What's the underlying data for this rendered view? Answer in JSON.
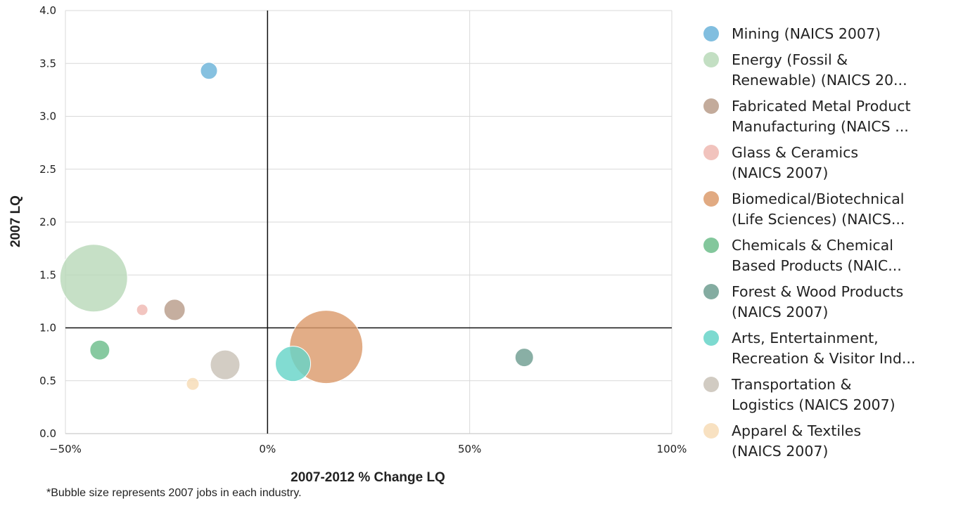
{
  "chart_data": {
    "type": "scatter",
    "xlabel": "2007-2012 % Change LQ",
    "ylabel": "2007 LQ",
    "xlim": [
      -50,
      100
    ],
    "ylim": [
      0,
      4
    ],
    "x_ticks": [
      {
        "value": -50,
        "label": "−50%"
      },
      {
        "value": 0,
        "label": "0%"
      },
      {
        "value": 50,
        "label": "50%"
      },
      {
        "value": 100,
        "label": "100%"
      }
    ],
    "y_ticks": [
      {
        "value": 0,
        "label": "0.0"
      },
      {
        "value": 0.5,
        "label": "0.5"
      },
      {
        "value": 1,
        "label": "1.0"
      },
      {
        "value": 1.5,
        "label": "1.5"
      },
      {
        "value": 2,
        "label": "2.0"
      },
      {
        "value": 2.5,
        "label": "2.5"
      },
      {
        "value": 3,
        "label": "3.0"
      },
      {
        "value": 3.5,
        "label": "3.5"
      },
      {
        "value": 4,
        "label": "4.0"
      }
    ],
    "reference_lines": {
      "x": 0,
      "y": 1.0
    },
    "grid": true,
    "legend_position": "right",
    "series": [
      {
        "name_lines": [
          "Mining (NAICS 2007)"
        ],
        "x": -14.5,
        "y": 3.43,
        "size": 12,
        "color": "#6bb3d9"
      },
      {
        "name_lines": [
          "Energy (Fossil &",
          "Renewable) (NAICS 20..."
        ],
        "x": -43,
        "y": 1.47,
        "size": 48,
        "color": "#b9d9b9"
      },
      {
        "name_lines": [
          "Fabricated Metal Product",
          "Manufacturing (NAICS ..."
        ],
        "x": -23,
        "y": 1.17,
        "size": 15,
        "color": "#b89c8a"
      },
      {
        "name_lines": [
          "Glass & Ceramics",
          "(NAICS 2007)"
        ],
        "x": -31,
        "y": 1.17,
        "size": 8,
        "color": "#efb8b2"
      },
      {
        "name_lines": [
          "Biomedical/Biotechnical",
          "(Life Sciences) (NAICS..."
        ],
        "x": 14.5,
        "y": 0.82,
        "size": 52,
        "color": "#dc9b6c"
      },
      {
        "name_lines": [
          "Chemicals & Chemical",
          "Based Products (NAIC..."
        ],
        "x": -41.5,
        "y": 0.79,
        "size": 14,
        "color": "#6dbd8b"
      },
      {
        "name_lines": [
          "Forest & Wood Products",
          "(NAICS 2007)"
        ],
        "x": 63.5,
        "y": 0.72,
        "size": 13,
        "color": "#6f9e91"
      },
      {
        "name_lines": [
          "Arts, Entertainment,",
          "Recreation & Visitor Ind..."
        ],
        "x": 6.3,
        "y": 0.66,
        "size": 25,
        "color": "#66d4c8"
      },
      {
        "name_lines": [
          "Transportation &",
          "Logistics (NAICS 2007)"
        ],
        "x": -10.5,
        "y": 0.65,
        "size": 21,
        "color": "#c9c2b7"
      },
      {
        "name_lines": [
          "Apparel & Textiles",
          "(NAICS 2007)"
        ],
        "x": -18.5,
        "y": 0.47,
        "size": 9,
        "color": "#f7dcb6"
      }
    ]
  },
  "footnote": "*Bubble size represents 2007 jobs in each industry."
}
